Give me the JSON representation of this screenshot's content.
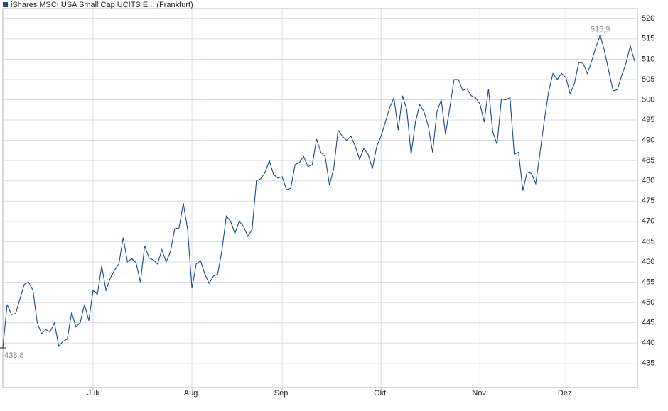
{
  "chart_data": {
    "type": "line",
    "grid": true,
    "frame_color": "#b0b4bc",
    "series": [
      {
        "name": "iShares MSCI USA Small Cap UCITS E... (Frankfurt)",
        "color": "#174a8b",
        "values": [
          438.8,
          449.5,
          447,
          447.3,
          451,
          454.5,
          455,
          453,
          445,
          442.3,
          443.3,
          442.7,
          445,
          439.2,
          440.4,
          441,
          447.5,
          444,
          445,
          449.5,
          445.5,
          453,
          452,
          459,
          453,
          456,
          458,
          459.5,
          466,
          460,
          460.8,
          459.8,
          455,
          464,
          461,
          460.5,
          459.5,
          463,
          460,
          462.5,
          468.2,
          468.4,
          474.5,
          468,
          453.5,
          459.5,
          460.3,
          457,
          454.7,
          456.5,
          457,
          463,
          471.3,
          470,
          467,
          470,
          468.8,
          466.3,
          468,
          480,
          480.5,
          482,
          485,
          481.5,
          480.7,
          481,
          477.8,
          478.2,
          484,
          484.5,
          486,
          483.5,
          484,
          490.3,
          487,
          486,
          479,
          483,
          492.5,
          491,
          490,
          491,
          488.5,
          485.3,
          488,
          486.5,
          483,
          488.5,
          491,
          494.5,
          498,
          500.5,
          492.5,
          501,
          497.5,
          486.5,
          494.5,
          498.8,
          497,
          493.5,
          487,
          497,
          500,
          491.5,
          498,
          505,
          505,
          502.3,
          502.7,
          501,
          500.5,
          499,
          494.5,
          502.7,
          492,
          489,
          500.2,
          500,
          500.5,
          486.6,
          487,
          477.6,
          482.2,
          481.8,
          479.3,
          487,
          495,
          502,
          506.5,
          505,
          506.5,
          505.5,
          501.5,
          504,
          509.2,
          509,
          506.5,
          509.5,
          513,
          515.9,
          512,
          507,
          502.2,
          502.5,
          506,
          509,
          513.3,
          509.5
        ]
      }
    ],
    "categories": [
      null,
      null,
      null,
      null,
      null,
      null,
      null,
      null,
      null,
      null,
      null,
      null,
      null,
      null,
      null,
      null,
      null,
      null,
      null,
      null,
      null,
      "Juli",
      null,
      null,
      null,
      null,
      null,
      null,
      null,
      null,
      null,
      null,
      null,
      null,
      null,
      null,
      null,
      null,
      null,
      null,
      null,
      null,
      null,
      null,
      "Aug.",
      null,
      null,
      null,
      null,
      null,
      null,
      null,
      null,
      null,
      null,
      null,
      null,
      null,
      null,
      null,
      null,
      null,
      null,
      null,
      null,
      "Sep.",
      null,
      null,
      null,
      null,
      null,
      null,
      null,
      null,
      null,
      null,
      null,
      null,
      null,
      null,
      null,
      null,
      null,
      null,
      null,
      null,
      null,
      null,
      "Okt.",
      null,
      null,
      null,
      null,
      null,
      null,
      null,
      null,
      null,
      null,
      null,
      null,
      null,
      null,
      null,
      null,
      null,
      null,
      null,
      null,
      null,
      null,
      "Nov.",
      null,
      null,
      null,
      null,
      null,
      null,
      null,
      null,
      null,
      null,
      null,
      null,
      null,
      null,
      null,
      null,
      null,
      null,
      null,
      "Dez.",
      null,
      null,
      null,
      null,
      null,
      null,
      null,
      null,
      null,
      null,
      null,
      null,
      null,
      null,
      null,
      null
    ],
    "ylim": [
      429,
      522.5
    ],
    "yticks": [
      435,
      440,
      445,
      450,
      455,
      460,
      465,
      470,
      475,
      480,
      485,
      490,
      495,
      500,
      505,
      510,
      515,
      520
    ],
    "annotations": [
      {
        "value": 438.8,
        "label": "438,8"
      },
      {
        "value": 515.9,
        "label": "515,9"
      }
    ]
  }
}
